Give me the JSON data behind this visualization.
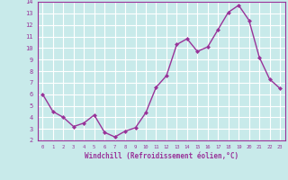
{
  "x": [
    0,
    1,
    2,
    3,
    4,
    5,
    6,
    7,
    8,
    9,
    10,
    11,
    12,
    13,
    14,
    15,
    16,
    17,
    18,
    19,
    20,
    21,
    22,
    23
  ],
  "y": [
    6.0,
    4.5,
    4.0,
    3.2,
    3.5,
    4.2,
    2.7,
    2.3,
    2.8,
    3.1,
    4.4,
    6.6,
    7.6,
    10.3,
    10.8,
    9.7,
    10.1,
    11.6,
    13.1,
    13.7,
    12.4,
    9.2,
    7.3,
    6.5
  ],
  "line_color": "#993399",
  "marker_color": "#993399",
  "bg_color": "#c8eaea",
  "grid_color": "#ffffff",
  "axis_label_color": "#993399",
  "tick_color": "#993399",
  "xlabel": "Windchill (Refroidissement éolien,°C)",
  "xlim": [
    -0.5,
    23.5
  ],
  "ylim": [
    2,
    14
  ],
  "yticks": [
    2,
    3,
    4,
    5,
    6,
    7,
    8,
    9,
    10,
    11,
    12,
    13,
    14
  ],
  "xticks": [
    0,
    1,
    2,
    3,
    4,
    5,
    6,
    7,
    8,
    9,
    10,
    11,
    12,
    13,
    14,
    15,
    16,
    17,
    18,
    19,
    20,
    21,
    22,
    23
  ]
}
